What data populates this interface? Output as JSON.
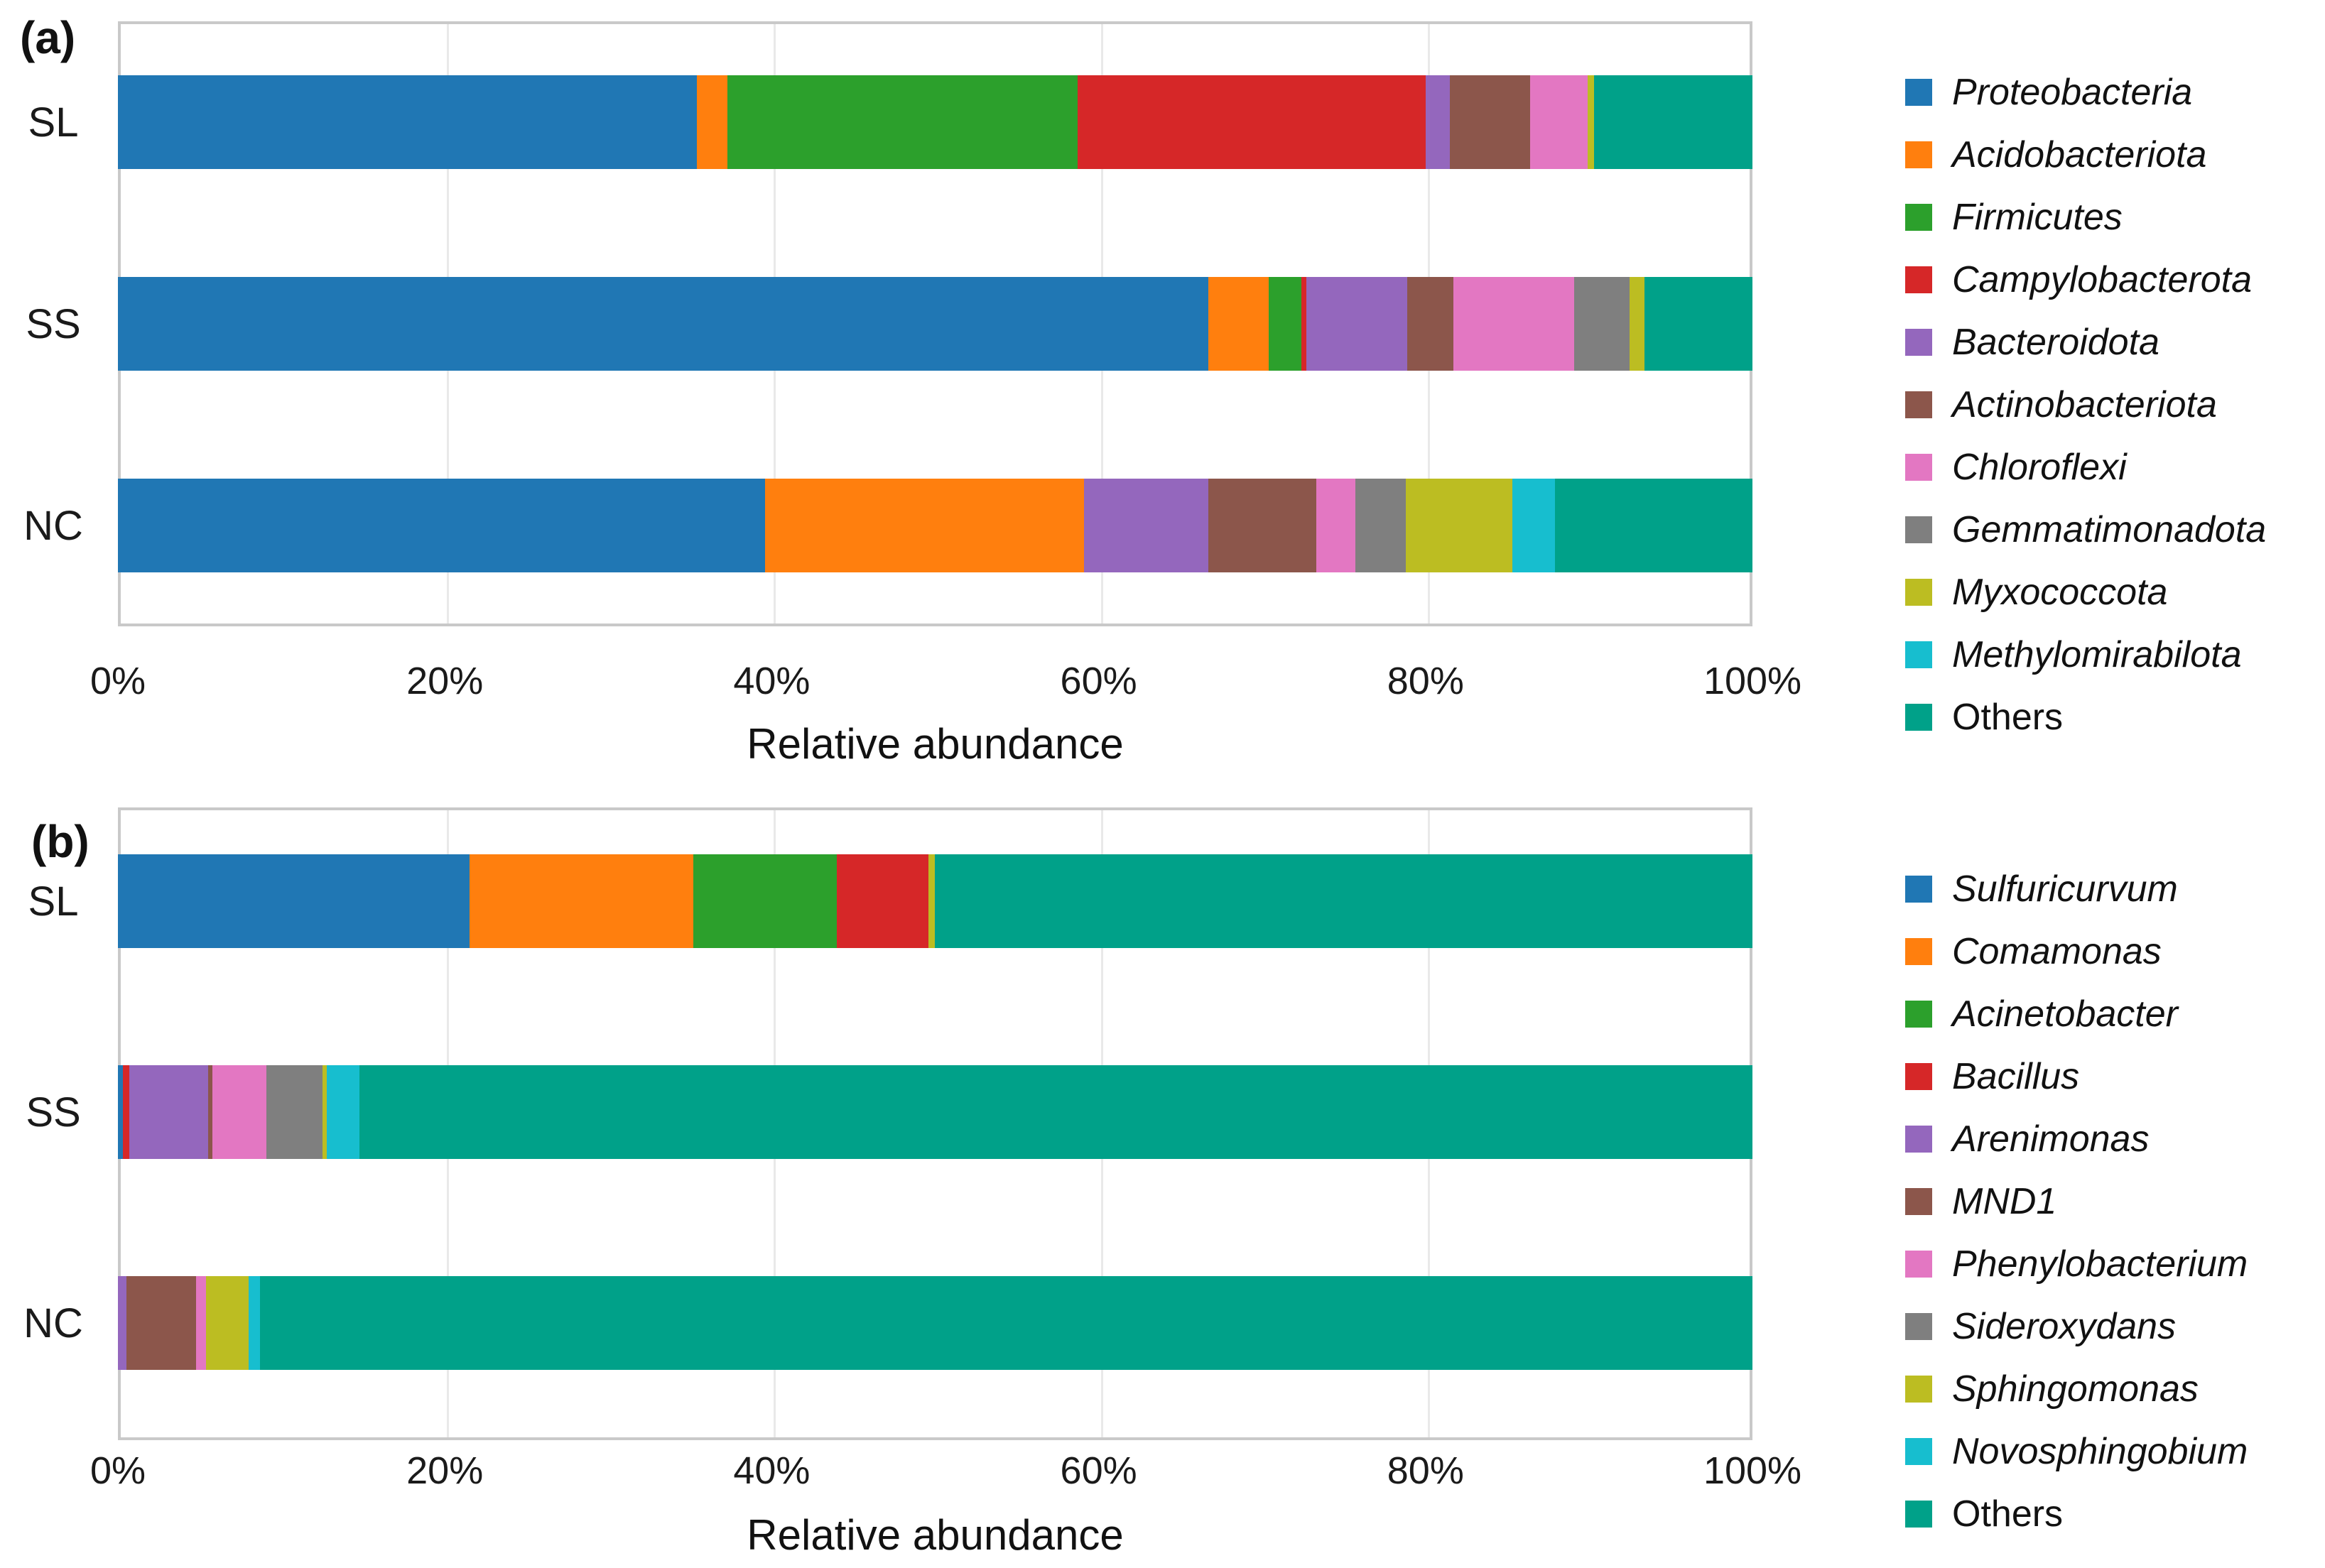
{
  "figure_title": "",
  "chart_data": [
    {
      "type": "bar",
      "orientation": "horizontal",
      "stacked": true,
      "panel_label": "(a)",
      "xlabel": "Relative abundance",
      "xlim": [
        0,
        100
      ],
      "x_ticks": [
        "0%",
        "20%",
        "40%",
        "60%",
        "80%",
        "100%"
      ],
      "grid": true,
      "legend_position": "right",
      "categories": [
        "SL",
        "SS",
        "NC"
      ],
      "series": [
        {
          "name": "Proteobacteria",
          "color": "#2077B4",
          "italic": true,
          "values": [
            35.4,
            66.7,
            39.6
          ]
        },
        {
          "name": "Acidobacteriota",
          "color": "#FF7F0E",
          "italic": true,
          "values": [
            1.9,
            3.7,
            19.5
          ]
        },
        {
          "name": "Firmicutes",
          "color": "#2CA02C",
          "italic": true,
          "values": [
            21.4,
            2.0,
            0
          ]
        },
        {
          "name": "Campylobacterota",
          "color": "#D62728",
          "italic": true,
          "values": [
            21.3,
            0.3,
            0
          ]
        },
        {
          "name": "Bacteroidota",
          "color": "#9467BD",
          "italic": true,
          "values": [
            1.5,
            6.2,
            7.6
          ]
        },
        {
          "name": "Actinobacteriota",
          "color": "#8C564B",
          "italic": true,
          "values": [
            4.9,
            2.8,
            6.6
          ]
        },
        {
          "name": "Chloroflexi",
          "color": "#E377C2",
          "italic": true,
          "values": [
            3.5,
            7.4,
            2.4
          ]
        },
        {
          "name": "Gemmatimonadota",
          "color": "#7F7F7F",
          "italic": true,
          "values": [
            0,
            3.4,
            3.1
          ]
        },
        {
          "name": "Myxococcota",
          "color": "#BCBD22",
          "italic": true,
          "values": [
            0.4,
            0.9,
            6.5
          ]
        },
        {
          "name": "Methylomirabilota",
          "color": "#17BECF",
          "italic": true,
          "values": [
            0,
            0,
            2.6
          ]
        },
        {
          "name": "Others",
          "color": "#00A189",
          "italic": false,
          "values": [
            9.7,
            6.6,
            12.1
          ]
        }
      ]
    },
    {
      "type": "bar",
      "orientation": "horizontal",
      "stacked": true,
      "panel_label": "(b)",
      "xlabel": "Relative abundance",
      "xlim": [
        0,
        100
      ],
      "x_ticks": [
        "0%",
        "20%",
        "40%",
        "60%",
        "80%",
        "100%"
      ],
      "grid": true,
      "legend_position": "right",
      "categories": [
        "SL",
        "SS",
        "NC"
      ],
      "series": [
        {
          "name": "Sulfuricurvum",
          "color": "#2077B4",
          "italic": true,
          "values": [
            21.5,
            0.3,
            0
          ]
        },
        {
          "name": "Comamonas",
          "color": "#FF7F0E",
          "italic": true,
          "values": [
            13.7,
            0,
            0
          ]
        },
        {
          "name": "Acinetobacter",
          "color": "#2CA02C",
          "italic": true,
          "values": [
            8.8,
            0,
            0
          ]
        },
        {
          "name": "Bacillus",
          "color": "#D62728",
          "italic": true,
          "values": [
            5.6,
            0.4,
            0
          ]
        },
        {
          "name": "Arenimonas",
          "color": "#9467BD",
          "italic": true,
          "values": [
            0,
            4.8,
            0.5
          ]
        },
        {
          "name": "MND1",
          "color": "#8C564B",
          "italic": true,
          "values": [
            0,
            0.3,
            4.3
          ]
        },
        {
          "name": "Phenylobacterium",
          "color": "#E377C2",
          "italic": true,
          "values": [
            0,
            3.3,
            0.6
          ]
        },
        {
          "name": "Sideroxydans",
          "color": "#7F7F7F",
          "italic": true,
          "values": [
            0,
            3.4,
            0
          ]
        },
        {
          "name": "Sphingomonas",
          "color": "#BCBD22",
          "italic": true,
          "values": [
            0.4,
            0.3,
            2.6
          ]
        },
        {
          "name": "Novosphingobium",
          "color": "#17BECF",
          "italic": true,
          "values": [
            0,
            2.0,
            0.7
          ]
        },
        {
          "name": "Others",
          "color": "#00A189",
          "italic": false,
          "values": [
            50.0,
            85.2,
            91.3
          ]
        }
      ]
    }
  ]
}
